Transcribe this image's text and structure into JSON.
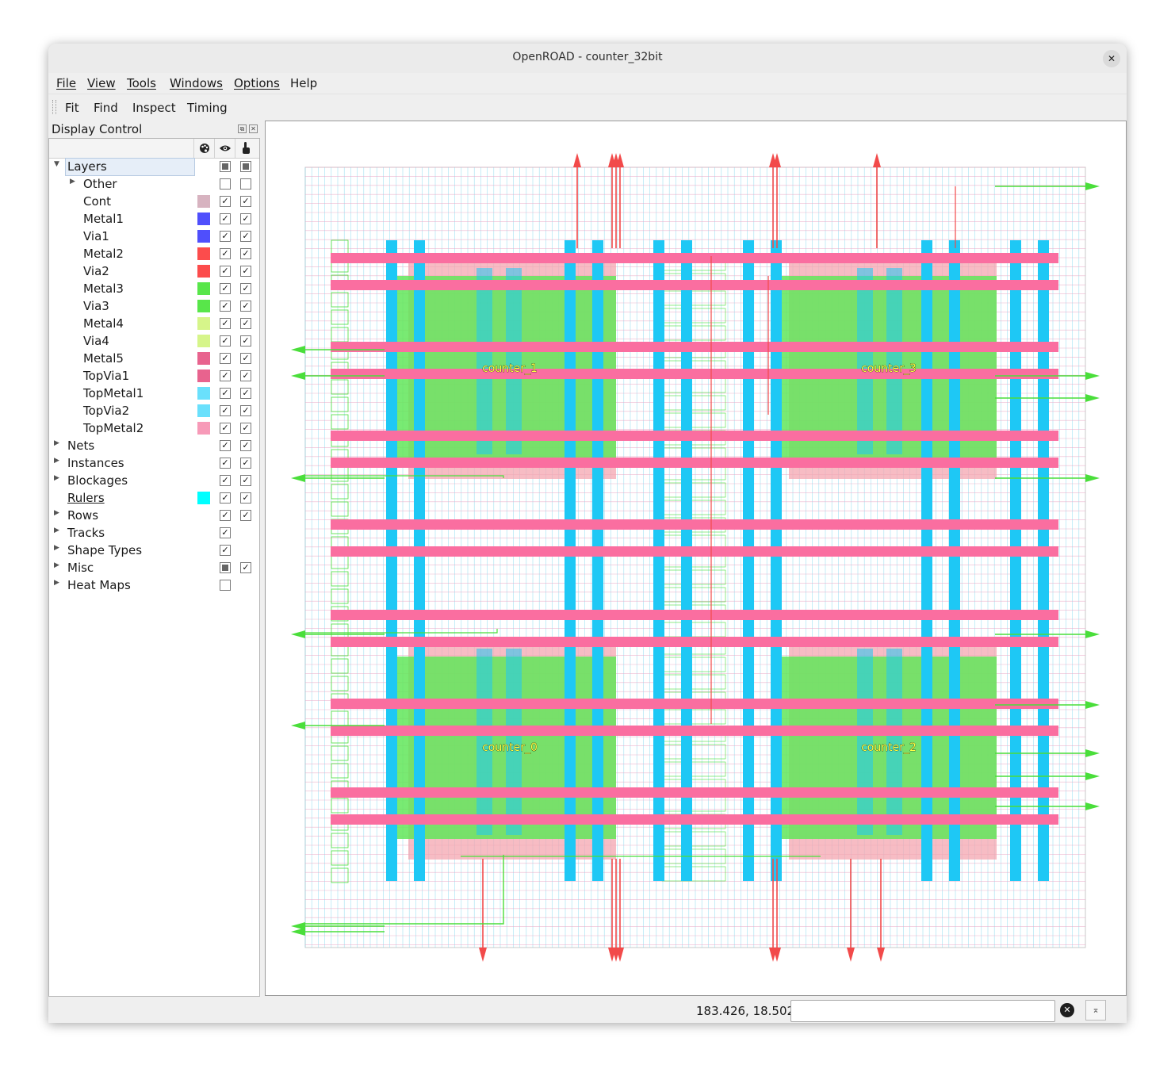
{
  "window": {
    "title": "OpenROAD - counter_32bit",
    "close_glyph": "✕"
  },
  "menu": [
    "File",
    "View",
    "Tools",
    "Windows",
    "Options",
    "Help"
  ],
  "toolbar": [
    "Fit",
    "Find",
    "Inspect",
    "Timing"
  ],
  "display_control": {
    "title": "Display Control",
    "header_icons": [
      "palette-icon",
      "eye-icon",
      "pointer-hand-icon"
    ],
    "rows": [
      {
        "label": "Layers",
        "level": 0,
        "expander": "expanded",
        "color": null,
        "visible": "partial",
        "selectable": "partial",
        "selected": true
      },
      {
        "label": "Other",
        "level": 1,
        "expander": "collapsed",
        "color": null,
        "visible": "unchecked",
        "selectable": "unchecked"
      },
      {
        "label": "Cont",
        "level": 1,
        "expander": null,
        "color": "#d7b3c0",
        "visible": "checked",
        "selectable": "checked"
      },
      {
        "label": "Metal1",
        "level": 1,
        "expander": null,
        "color": "#4f4ffc",
        "visible": "checked",
        "selectable": "checked"
      },
      {
        "label": "Via1",
        "level": 1,
        "expander": null,
        "color": "#4f4ffc",
        "visible": "checked",
        "selectable": "checked"
      },
      {
        "label": "Metal2",
        "level": 1,
        "expander": null,
        "color": "#fc4c4c",
        "visible": "checked",
        "selectable": "checked"
      },
      {
        "label": "Via2",
        "level": 1,
        "expander": null,
        "color": "#fc4c4c",
        "visible": "checked",
        "selectable": "checked"
      },
      {
        "label": "Metal3",
        "level": 1,
        "expander": null,
        "color": "#58e64a",
        "visible": "checked",
        "selectable": "checked"
      },
      {
        "label": "Via3",
        "level": 1,
        "expander": null,
        "color": "#58e64a",
        "visible": "checked",
        "selectable": "checked"
      },
      {
        "label": "Metal4",
        "level": 1,
        "expander": null,
        "color": "#d6f58a",
        "visible": "checked",
        "selectable": "checked"
      },
      {
        "label": "Via4",
        "level": 1,
        "expander": null,
        "color": "#d6f58a",
        "visible": "checked",
        "selectable": "checked"
      },
      {
        "label": "Metal5",
        "level": 1,
        "expander": null,
        "color": "#e8638e",
        "visible": "checked",
        "selectable": "checked"
      },
      {
        "label": "TopVia1",
        "level": 1,
        "expander": null,
        "color": "#e8638e",
        "visible": "checked",
        "selectable": "checked"
      },
      {
        "label": "TopMetal1",
        "level": 1,
        "expander": null,
        "color": "#6ae0fc",
        "visible": "checked",
        "selectable": "checked"
      },
      {
        "label": "TopVia2",
        "level": 1,
        "expander": null,
        "color": "#6ae0fc",
        "visible": "checked",
        "selectable": "checked"
      },
      {
        "label": "TopMetal2",
        "level": 1,
        "expander": null,
        "color": "#f79ab8",
        "visible": "checked",
        "selectable": "checked"
      },
      {
        "label": "Nets",
        "level": 0,
        "expander": "collapsed",
        "color": null,
        "visible": "checked",
        "selectable": "checked"
      },
      {
        "label": "Instances",
        "level": 0,
        "expander": "collapsed",
        "color": null,
        "visible": "checked",
        "selectable": "checked"
      },
      {
        "label": "Blockages",
        "level": 0,
        "expander": "collapsed",
        "color": null,
        "visible": "checked",
        "selectable": "checked"
      },
      {
        "label": "Rulers",
        "level": 0,
        "expander": null,
        "color": "#00ffff",
        "visible": "checked",
        "selectable": "checked",
        "underline": true
      },
      {
        "label": "Rows",
        "level": 0,
        "expander": "collapsed",
        "color": null,
        "visible": "checked",
        "selectable": "checked"
      },
      {
        "label": "Tracks",
        "level": 0,
        "expander": "collapsed",
        "color": null,
        "visible": "checked",
        "selectable": null
      },
      {
        "label": "Shape Types",
        "level": 0,
        "expander": "collapsed",
        "color": null,
        "visible": "checked",
        "selectable": null
      },
      {
        "label": "Misc",
        "level": 0,
        "expander": "collapsed",
        "color": null,
        "visible": "partial",
        "selectable": "checked"
      },
      {
        "label": "Heat Maps",
        "level": 0,
        "expander": "collapsed",
        "color": null,
        "visible": "unchecked",
        "selectable": null
      }
    ]
  },
  "layout_view": {
    "instances": [
      {
        "name": "counter_1",
        "quadrant": "top-left"
      },
      {
        "name": "counter_3",
        "quadrant": "top-right"
      },
      {
        "name": "counter_0",
        "quadrant": "bottom-left"
      },
      {
        "name": "counter_2",
        "quadrant": "bottom-right"
      }
    ],
    "colors": {
      "track_h": "#e8a0c0",
      "track_v": "#7fd8ee",
      "power_strap_h": "#fa6ea0",
      "power_strap_v": "#1ec8f5",
      "macro_fill": "#62e65a",
      "macro_halo": "#f4a6b0",
      "signal_red": "#f24a4a",
      "signal_green": "#4ade3a"
    }
  },
  "status": {
    "coordinates": "183.426, 18.502",
    "command_value": "",
    "clear_glyph": "✕",
    "expand_glyph": "⌅"
  }
}
